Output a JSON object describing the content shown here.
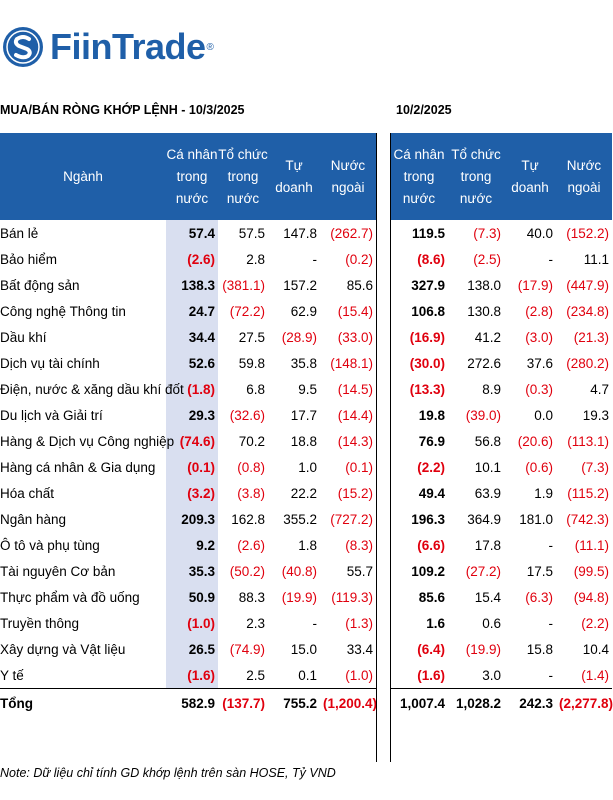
{
  "brand": {
    "name": "FiinTrade",
    "reg": "®"
  },
  "section1": {
    "title": "MUA/BÁN RÒNG KHỚP LỆNH - 10/3/2025",
    "headers": {
      "sector": "Ngành",
      "c1": "Cá nhân trong nước",
      "c2": "Tổ chức trong nước",
      "c3": "Tự doanh",
      "c4": "Nước ngoài"
    }
  },
  "section2": {
    "title": "10/2/2025",
    "headers": {
      "c1": "Cá nhân trong nước",
      "c2": "Tổ chức trong nước",
      "c3": "Tự doanh",
      "c4": "Nước ngoài"
    }
  },
  "rows": [
    {
      "name": "Bán lẻ",
      "a": [
        "57.4",
        "57.5",
        "147.8",
        "(262.7)"
      ],
      "b": [
        "119.5",
        "(7.3)",
        "40.0",
        "(152.2)"
      ]
    },
    {
      "name": "Bảo hiểm",
      "a": [
        "(2.6)",
        "2.8",
        "-",
        "(0.2)"
      ],
      "b": [
        "(8.6)",
        "(2.5)",
        "-",
        "11.1"
      ]
    },
    {
      "name": "Bất động sản",
      "a": [
        "138.3",
        "(381.1)",
        "157.2",
        "85.6"
      ],
      "b": [
        "327.9",
        "138.0",
        "(17.9)",
        "(447.9)"
      ]
    },
    {
      "name": "Công nghệ Thông tin",
      "a": [
        "24.7",
        "(72.2)",
        "62.9",
        "(15.4)"
      ],
      "b": [
        "106.8",
        "130.8",
        "(2.8)",
        "(234.8)"
      ]
    },
    {
      "name": "Dầu khí",
      "a": [
        "34.4",
        "27.5",
        "(28.9)",
        "(33.0)"
      ],
      "b": [
        "(16.9)",
        "41.2",
        "(3.0)",
        "(21.3)"
      ]
    },
    {
      "name": "Dịch vụ tài chính",
      "a": [
        "52.6",
        "59.8",
        "35.8",
        "(148.1)"
      ],
      "b": [
        "(30.0)",
        "272.6",
        "37.6",
        "(280.2)"
      ]
    },
    {
      "name": "Điện, nước & xăng dầu khí đốt",
      "a": [
        "(1.8)",
        "6.8",
        "9.5",
        "(14.5)"
      ],
      "b": [
        "(13.3)",
        "8.9",
        "(0.3)",
        "4.7"
      ]
    },
    {
      "name": "Du lịch và Giải trí",
      "a": [
        "29.3",
        "(32.6)",
        "17.7",
        "(14.4)"
      ],
      "b": [
        "19.8",
        "(39.0)",
        "0.0",
        "19.3"
      ]
    },
    {
      "name": "Hàng & Dịch vụ Công nghiệp",
      "a": [
        "(74.6)",
        "70.2",
        "18.8",
        "(14.3)"
      ],
      "b": [
        "76.9",
        "56.8",
        "(20.6)",
        "(113.1)"
      ]
    },
    {
      "name": "Hàng cá nhân & Gia dụng",
      "a": [
        "(0.1)",
        "(0.8)",
        "1.0",
        "(0.1)"
      ],
      "b": [
        "(2.2)",
        "10.1",
        "(0.6)",
        "(7.3)"
      ]
    },
    {
      "name": "Hóa chất",
      "a": [
        "(3.2)",
        "(3.8)",
        "22.2",
        "(15.2)"
      ],
      "b": [
        "49.4",
        "63.9",
        "1.9",
        "(115.2)"
      ]
    },
    {
      "name": "Ngân hàng",
      "a": [
        "209.3",
        "162.8",
        "355.2",
        "(727.2)"
      ],
      "b": [
        "196.3",
        "364.9",
        "181.0",
        "(742.3)"
      ]
    },
    {
      "name": "Ô tô và phụ tùng",
      "a": [
        "9.2",
        "(2.6)",
        "1.8",
        "(8.3)"
      ],
      "b": [
        "(6.6)",
        "17.8",
        "-",
        "(11.1)"
      ]
    },
    {
      "name": "Tài nguyên Cơ bản",
      "a": [
        "35.3",
        "(50.2)",
        "(40.8)",
        "55.7"
      ],
      "b": [
        "109.2",
        "(27.2)",
        "17.5",
        "(99.5)"
      ]
    },
    {
      "name": "Thực phẩm và đồ uống",
      "a": [
        "50.9",
        "88.3",
        "(19.9)",
        "(119.3)"
      ],
      "b": [
        "85.6",
        "15.4",
        "(6.3)",
        "(94.8)"
      ]
    },
    {
      "name": "Truyền thông",
      "a": [
        "(1.0)",
        "2.3",
        "-",
        "(1.3)"
      ],
      "b": [
        "1.6",
        "0.6",
        "-",
        "(2.2)"
      ]
    },
    {
      "name": "Xây dựng và Vật liệu",
      "a": [
        "26.5",
        "(74.9)",
        "15.0",
        "33.4"
      ],
      "b": [
        "(6.4)",
        "(19.9)",
        "15.8",
        "10.4"
      ]
    },
    {
      "name": "Y tế",
      "a": [
        "(1.6)",
        "2.5",
        "0.1",
        "(1.0)"
      ],
      "b": [
        "(1.6)",
        "3.0",
        "-",
        "(1.4)"
      ]
    }
  ],
  "total": {
    "name": "Tổng",
    "a": [
      "582.9",
      "(137.7)",
      "755.2",
      "(1,200.4)"
    ],
    "b": [
      "1,007.4",
      "1,028.2",
      "242.3",
      "(2,277.8)"
    ]
  },
  "note": "Note: Dữ liệu chỉ tính GD khớp lệnh trên sàn HOSE, Tỷ VND",
  "colors": {
    "header_bg": "#1f5fa8",
    "negative": "#e0000e",
    "highlight": "#d9dff0"
  }
}
